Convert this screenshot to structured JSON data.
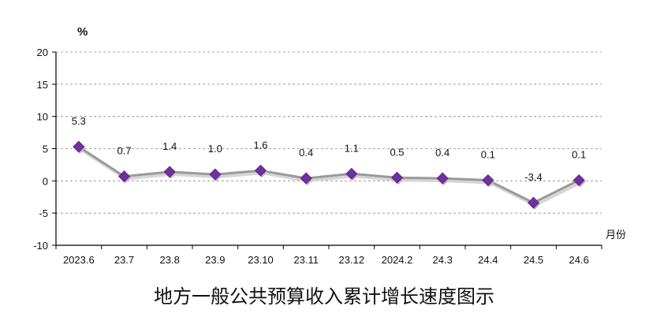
{
  "chart_data": {
    "type": "line",
    "title": "地方一般公共预算收入累计增长速度图示",
    "ylabel": "%",
    "xlabel": "月份",
    "ylim": [
      -10,
      20
    ],
    "yticks": [
      20,
      15,
      10,
      5,
      0,
      -5,
      -10
    ],
    "grid": true,
    "categories": [
      "2023.6",
      "23.7",
      "23.8",
      "23.9",
      "23.10",
      "23.11",
      "23.12",
      "2024.2",
      "24.3",
      "24.4",
      "24.5",
      "24.6"
    ],
    "series": [
      {
        "values": [
          5.3,
          0.7,
          1.4,
          1.0,
          1.6,
          0.4,
          1.1,
          0.5,
          0.4,
          0.1,
          -3.4,
          0.1
        ],
        "labels": [
          "5.3",
          "0.7",
          "1.4",
          "1.0",
          "1.6",
          "0.4",
          "1.1",
          "0.5",
          "0.4",
          "0.1",
          "-3.4",
          "0.1"
        ],
        "line_color": "#9a9a9a",
        "marker_color": "#7030a0",
        "marker": "diamond"
      }
    ]
  }
}
